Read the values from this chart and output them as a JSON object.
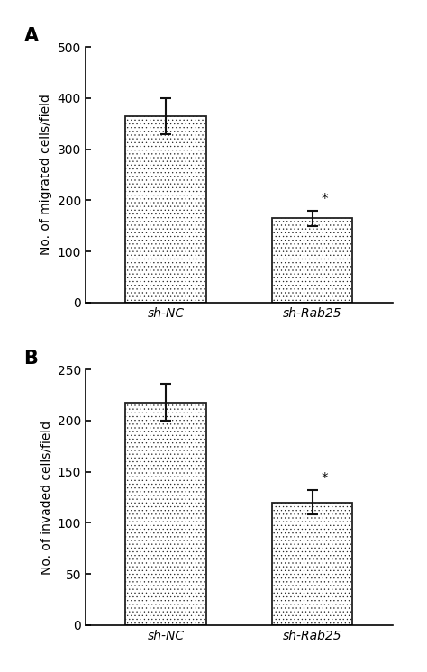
{
  "panel_A": {
    "categories": [
      "sh-NC",
      "sh-Rab25"
    ],
    "values": [
      365,
      165
    ],
    "errors": [
      35,
      15
    ],
    "ylabel": "No. of migrated cells/field",
    "ylim": [
      0,
      500
    ],
    "yticks": [
      0,
      100,
      200,
      300,
      400,
      500
    ],
    "significance": [
      false,
      true
    ],
    "label": "A"
  },
  "panel_B": {
    "categories": [
      "sh-NC",
      "sh-Rab25"
    ],
    "values": [
      218,
      120
    ],
    "errors": [
      18,
      12
    ],
    "ylabel": "No. of invaded cells/field",
    "ylim": [
      0,
      250
    ],
    "yticks": [
      0,
      50,
      100,
      150,
      200,
      250
    ],
    "significance": [
      false,
      true
    ],
    "label": "B"
  },
  "bar_facecolor": "#ffffff",
  "bar_edgecolor": "#222222",
  "hatch": "....",
  "background_color": "#ffffff",
  "tick_label_fontsize": 10,
  "axis_label_fontsize": 10,
  "panel_label_fontsize": 15,
  "bar_width": 0.55,
  "capsize": 4,
  "elinewidth": 1.5,
  "ecapthick": 1.5,
  "hatch_color": "#555555"
}
